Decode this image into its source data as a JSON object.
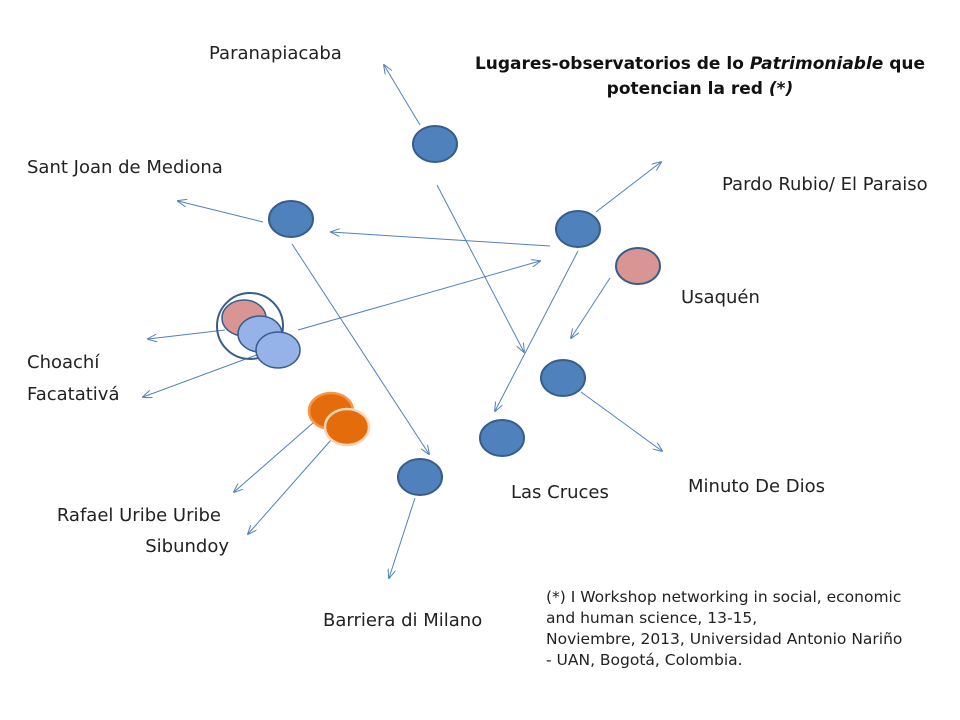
{
  "title": {
    "part1": "Lugares-observatorios de lo ",
    "italic": "Patrimoniable",
    "part2": "  que",
    "line2": "potencian la red ",
    "line2_italic": "(*)"
  },
  "labels": {
    "paranapiacaba": "Paranapiacaba",
    "sant_joan": "Sant Joan de Mediona",
    "pardo_rubio": "Pardo Rubio/ El Paraiso",
    "usaquen": "Usaquén",
    "choachi": "Choachí",
    "facatativa": "Facatativá",
    "rafael_uribe": "Rafael Uribe Uribe",
    "sibundoy": "Sibundoy",
    "barriera": "Barriera di Milano",
    "las_cruces": "Las Cruces",
    "minuto_de_dios": "Minuto De Dios"
  },
  "footnote": {
    "line1": "(*) I Workshop networking in social, economic",
    "line2": "and human science, 13-15,",
    "line3": "Noviembre, 2013, Universidad Antonio Nariño",
    "line4": "- UAN, Bogotá, Colombia."
  },
  "colors": {
    "node_blue": "#4f81bd",
    "node_blue_stroke": "#385d8a",
    "node_light_blue": "#95b3e8",
    "node_pink": "#d99594",
    "node_orange": "#e46c0a",
    "node_orange_stroke": "#f79646",
    "arrow": "#4f81bd"
  }
}
